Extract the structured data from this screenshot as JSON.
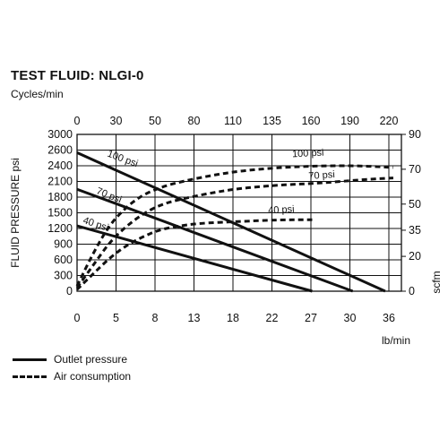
{
  "title": "TEST FLUID: NLGI-0",
  "subtitle": "Cycles/min",
  "chart_data": {
    "type": "line",
    "top_axis": {
      "label": "Cycles/min",
      "ticks": [
        "0",
        "30",
        "50",
        "80",
        "110",
        "135",
        "160",
        "190",
        "220"
      ]
    },
    "bottom_axis": {
      "label": "lb/min",
      "ticks": [
        "0",
        "5",
        "8",
        "13",
        "18",
        "22",
        "27",
        "30",
        "36"
      ],
      "range": [
        0,
        40
      ]
    },
    "left_axis": {
      "label": "FLUID PRESSURE psi",
      "ticks": [
        "0",
        "300",
        "600",
        "900",
        "1200",
        "1500",
        "1800",
        "2100",
        "2400",
        "2600",
        "3000"
      ],
      "range": [
        0,
        3000
      ]
    },
    "right_axis": {
      "label": "scfm",
      "ticks": [
        "0",
        "20",
        "35",
        "50",
        "70",
        "90"
      ],
      "range": [
        0,
        90
      ]
    },
    "grid": true,
    "series": [
      {
        "name": "100 psi",
        "kind": "outlet",
        "style": "solid",
        "points": [
          [
            0,
            2650
          ],
          [
            38,
            0
          ]
        ]
      },
      {
        "name": "70 psi",
        "kind": "outlet",
        "style": "solid",
        "points": [
          [
            0,
            1950
          ],
          [
            34,
            0
          ]
        ]
      },
      {
        "name": "40 psi",
        "kind": "outlet",
        "style": "solid",
        "points": [
          [
            0,
            1250
          ],
          [
            29,
            0
          ]
        ]
      },
      {
        "name": "100 psi",
        "kind": "air",
        "style": "dashed",
        "points": [
          [
            0,
            3
          ],
          [
            2,
            22
          ],
          [
            4,
            38
          ],
          [
            6,
            48
          ],
          [
            8,
            55
          ],
          [
            10,
            59
          ],
          [
            12,
            62
          ],
          [
            16,
            66
          ],
          [
            20,
            69
          ],
          [
            25,
            71
          ],
          [
            30,
            72
          ],
          [
            35,
            72
          ],
          [
            39,
            71
          ]
        ]
      },
      {
        "name": "70 psi",
        "kind": "air",
        "style": "dashed",
        "points": [
          [
            0,
            2
          ],
          [
            2,
            15
          ],
          [
            4,
            28
          ],
          [
            6,
            37
          ],
          [
            8,
            44
          ],
          [
            10,
            49
          ],
          [
            12,
            52
          ],
          [
            16,
            56
          ],
          [
            20,
            59
          ],
          [
            25,
            61
          ],
          [
            30,
            62
          ],
          [
            35,
            64
          ],
          [
            39,
            65
          ]
        ]
      },
      {
        "name": "40 psi",
        "kind": "air",
        "style": "dashed",
        "points": [
          [
            0,
            1
          ],
          [
            2,
            10
          ],
          [
            4,
            19
          ],
          [
            6,
            26
          ],
          [
            8,
            31
          ],
          [
            10,
            35
          ],
          [
            12,
            37
          ],
          [
            15,
            39
          ],
          [
            20,
            40
          ],
          [
            25,
            41
          ],
          [
            29,
            41
          ]
        ]
      }
    ],
    "labels": [
      {
        "text": "100 psi",
        "x": 5.5,
        "y": 2480,
        "rotate": 20
      },
      {
        "text": "70 psi",
        "x": 3.8,
        "y": 1780,
        "rotate": 22
      },
      {
        "text": "40 psi",
        "x": 2.2,
        "y": 1230,
        "rotate": 18
      },
      {
        "text": "100 psi",
        "x": 28.5,
        "y": 2580,
        "rotate": -3
      },
      {
        "text": "70 psi",
        "x": 30.2,
        "y": 2160,
        "rotate": -4
      },
      {
        "text": "40 psi",
        "x": 25.2,
        "y": 1500,
        "rotate": -3
      }
    ]
  },
  "legend": {
    "outlet_pressure": "Outlet pressure",
    "air_consumption": "Air consumption"
  }
}
